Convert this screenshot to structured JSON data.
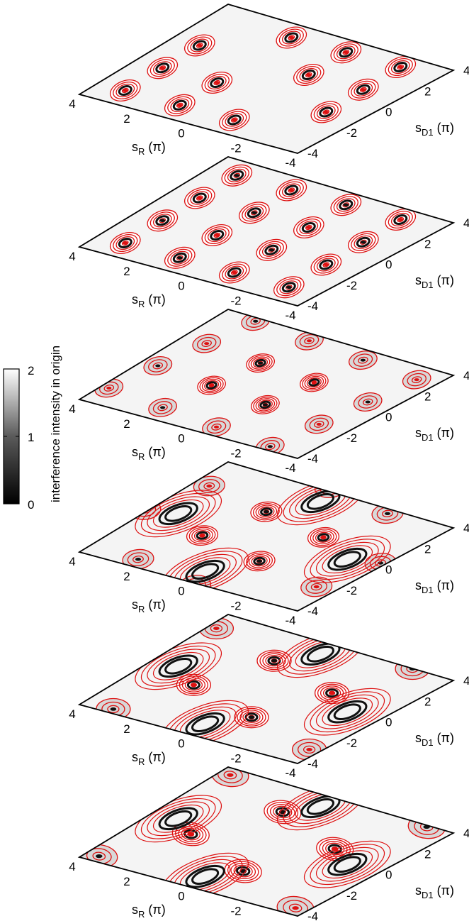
{
  "chart_data": {
    "type": "heatmap",
    "panel_count": 6,
    "x_axis": {
      "label_main": "s",
      "label_sub": "R",
      "label_unit": "(π)",
      "ticks": [
        4,
        2,
        0,
        -2,
        -4
      ],
      "tick_labels": [
        "4",
        "2",
        "0",
        "-2",
        "-4"
      ],
      "range": [
        -4,
        4
      ]
    },
    "y_axis": {
      "label_main": "s",
      "label_sub": "D1",
      "label_unit": "(π)",
      "ticks": [
        -4,
        -2,
        0,
        2,
        4
      ],
      "tick_labels": [
        "-4",
        "-2",
        "0",
        "2",
        "4"
      ],
      "range": [
        -4,
        4
      ]
    },
    "colorbar": {
      "label": "interference intensity in origin",
      "range": [
        0,
        2
      ],
      "ticks": [
        "0",
        "1",
        "2"
      ],
      "colormap": "black-to-white grayscale"
    },
    "contour_color": "#dd1111",
    "panels": [
      {
        "pattern": "dense grid of closed contour islands with a white diagonal band",
        "spacing": 2,
        "rotation_deg": 0,
        "diagonal_band": true
      },
      {
        "pattern": "dense grid of closed contour islands, dark minima interleaved",
        "spacing": 2,
        "rotation_deg": 0,
        "diagonal_band": false
      },
      {
        "pattern": "grid of contour islands, outer ones weaker (gray)",
        "spacing": 2.2,
        "rotation_deg": 8,
        "diagonal_band": false
      },
      {
        "pattern": "central 2x2 cluster with elongated dark lobes at the corners",
        "spacing": 2.6,
        "rotation_deg": 14,
        "diagonal_band": false
      },
      {
        "pattern": "central 2x2 cluster surrounded by four elongated dark crescents",
        "spacing": 3,
        "rotation_deg": 20,
        "diagonal_band": false
      },
      {
        "pattern": "central 2x2 cluster surrounded by a ring of four dark crescents",
        "spacing": 3.2,
        "rotation_deg": 26,
        "diagonal_band": false
      }
    ]
  }
}
